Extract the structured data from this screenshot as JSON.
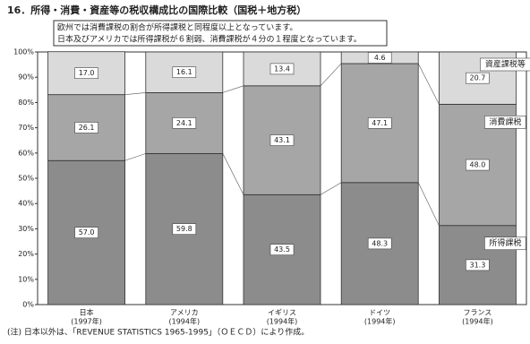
{
  "chart_data": {
    "type": "stacked_bar",
    "title": "16．所得・消費・資産等の税収構成比の国際比較（国税＋地方税）",
    "annotation": [
      "欧州では消費課税の割合が所得課税と同程度以上となっています。",
      "日本及びアメリカでは所得課税が６割弱、消費課税が４分の１程度となっています。"
    ],
    "categories": [
      "日本",
      "アメリカ",
      "イギリス",
      "ドイツ",
      "フランス"
    ],
    "category_years": [
      "(1997年)",
      "(1994年)",
      "(1994年)",
      "(1994年)",
      "(1994年)"
    ],
    "series": [
      {
        "name": "所得課税",
        "color": "#8c8c8c",
        "values": [
          57.0,
          59.8,
          43.5,
          48.3,
          31.3
        ],
        "value_labels": [
          "57.0",
          "59.8",
          "43.5",
          "48.3",
          "31.3"
        ]
      },
      {
        "name": "消費課税",
        "color": "#a6a6a6",
        "values": [
          26.1,
          24.1,
          43.1,
          47.1,
          48.0
        ],
        "value_labels": [
          "26.1",
          "24.1",
          "43.1",
          "47.1",
          "48.0"
        ]
      },
      {
        "name": "資産課税等",
        "color": "#dadada",
        "values": [
          17.0,
          16.1,
          13.4,
          4.6,
          20.7
        ],
        "value_labels": [
          "17.0",
          "16.1",
          "13.4",
          "4.6",
          "20.7"
        ]
      }
    ],
    "ylim": [
      0,
      100
    ],
    "yticks": [
      {
        "value": 0,
        "label": "0%"
      },
      {
        "value": 10,
        "label": "10%"
      },
      {
        "value": 20,
        "label": "20%"
      },
      {
        "value": 30,
        "label": "30%"
      },
      {
        "value": 40,
        "label": "40%"
      },
      {
        "value": 50,
        "label": "50%"
      },
      {
        "value": 60,
        "label": "60%"
      },
      {
        "value": 70,
        "label": "70%"
      },
      {
        "value": 80,
        "label": "80%"
      },
      {
        "value": 90,
        "label": "90%"
      },
      {
        "value": 100,
        "label": "100%"
      }
    ],
    "footnote": "(注) 日本以外は、「REVENUE STATISTICS 1965-1995」（ＯＥＣＤ）により作成。"
  }
}
